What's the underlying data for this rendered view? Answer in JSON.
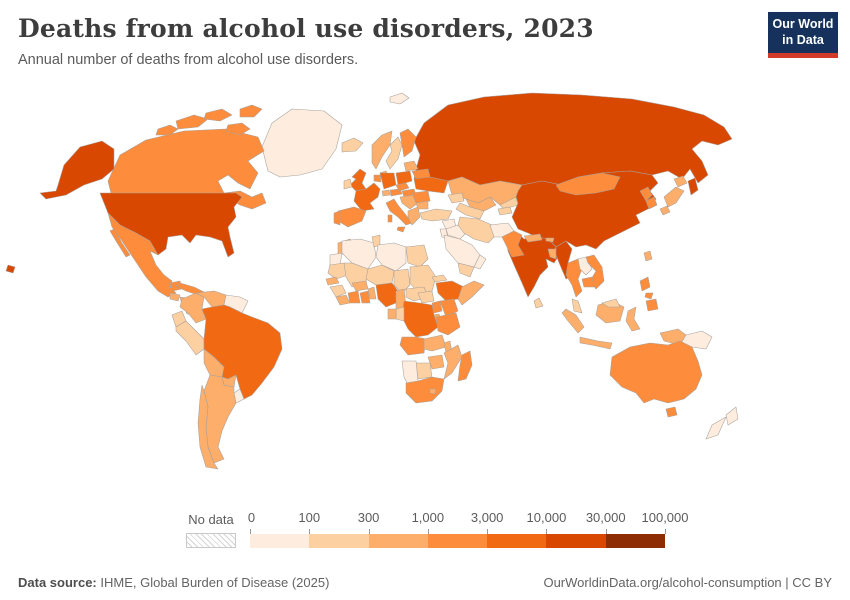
{
  "header": {
    "title": "Deaths from alcohol use disorders, 2023",
    "subtitle": "Annual number of deaths from alcohol use disorders.",
    "logo": {
      "line1": "Our World",
      "line2": "in Data",
      "bg": "#16325c",
      "accent": "#d23a2c"
    }
  },
  "legend": {
    "no_data_label": "No data",
    "tick_labels": [
      "0",
      "100",
      "300",
      "1,000",
      "3,000",
      "10,000",
      "30,000",
      "100,000"
    ]
  },
  "footer": {
    "source_label": "Data source:",
    "source_text": " IHME, Global Burden of Disease (2025)",
    "link_text": "OurWorldinData.org/alcohol-consumption | CC BY"
  },
  "chart_data": {
    "type": "choropleth-map",
    "title": "Deaths from alcohol use disorders, 2023",
    "unit": "deaths",
    "bins": [
      0,
      100,
      300,
      1000,
      3000,
      10000,
      30000,
      100000
    ],
    "palette": [
      "#feedde",
      "#fdd0a2",
      "#fdae6b",
      "#fd8d3c",
      "#f16913",
      "#d94801",
      "#8c2d04"
    ],
    "no_data_pattern": "diagonal-hatch",
    "country_buckets": {
      "United States": 6,
      "Canada": 4,
      "Mexico": 4,
      "Greenland": 1,
      "Cuba": 4,
      "Hispaniola": 3,
      "Guatemala": 3,
      "Honduras-Nicaragua": 3,
      "Costa Rica-Panama": 2,
      "Colombia": 3,
      "Venezuela": 3,
      "Guyanas": 1,
      "Ecuador": 2,
      "Peru": 2,
      "Brazil": 5,
      "Bolivia": 3,
      "Paraguay": 3,
      "Uruguay": 1,
      "Argentina": 3,
      "Chile": 3,
      "Iceland": 2,
      "United Kingdom": 5,
      "Ireland": 2,
      "Norway": 3,
      "Sweden": 2,
      "Finland": 4,
      "Denmark": 3,
      "Baltic states": 3,
      "Belarus": 4,
      "Poland": 5,
      "Germany": 5,
      "Benelux": 4,
      "France": 5,
      "Spain": 4,
      "Portugal": 4,
      "Switzerland": 3,
      "Austria": 4,
      "Czechia": 4,
      "Hungary-Slovakia": 4,
      "Italy": 4,
      "Balkans": 3,
      "Greece": 3,
      "Romania": 4,
      "Bulgaria": 3,
      "Ukraine": 5,
      "Russia": 6,
      "Svalbard": 1,
      "Kazakhstan": 3,
      "Uzbekistan": 3,
      "Turkmenistan": 2,
      "Kyrgyzstan": 2,
      "Tajikistan": 2,
      "Caucasus": 2,
      "Turkey": 2,
      "Syria": 1,
      "Iraq": 1,
      "Iran": 2,
      "Saudi Arabia": 1,
      "Yemen": 2,
      "Oman": 1,
      "Jordan-Israel": 1,
      "Afghanistan": 1,
      "Pakistan": 4,
      "India": 6,
      "Sri Lanka": 2,
      "Nepal": 3,
      "Bhutan": 3,
      "Bangladesh": 3,
      "China": 6,
      "Mongolia": 4,
      "North Korea": 4,
      "South Korea": 4,
      "Japan": 3,
      "Taiwan": 3,
      "Myanmar": 6,
      "Thailand": 4,
      "Laos": 1,
      "Vietnam": 4,
      "Cambodia": 4,
      "Malaysia": 2,
      "Indonesia": 3,
      "Philippines": 4,
      "Papua New Guinea": 1,
      "Morocco": 3,
      "Western Sahara": 1,
      "Algeria": 1,
      "Tunisia": 2,
      "Libya": 1,
      "Egypt": 2,
      "Mauritania": 2,
      "Mali": 2,
      "Niger": 2,
      "Chad": 2,
      "Sudan": 2,
      "South Sudan": 2,
      "Eritrea": 2,
      "Senegal": 3,
      "Guinea": 2,
      "Sierra Leone-Liberia": 3,
      "Ivory Coast": 4,
      "Ghana": 4,
      "Burkina Faso": 3,
      "Togo-Benin": 3,
      "Nigeria": 5,
      "Cameroon": 3,
      "Central African Republic": 2,
      "Ethiopia": 5,
      "Somalia": 3,
      "Kenya": 4,
      "Uganda": 4,
      "Rwanda-Burundi": 3,
      "DR Congo": 5,
      "Congo": 2,
      "Gabon": 3,
      "Tanzania": 4,
      "Angola": 4,
      "Zambia": 3,
      "Malawi": 3,
      "Mozambique": 3,
      "Zimbabwe": 3,
      "Botswana": 2,
      "Namibia": 1,
      "South Africa": 4,
      "Lesotho": 3,
      "Madagascar": 4,
      "Australia": 4,
      "Tasmania": 4,
      "New Zealand": 1,
      "Hawaii": 6
    }
  }
}
